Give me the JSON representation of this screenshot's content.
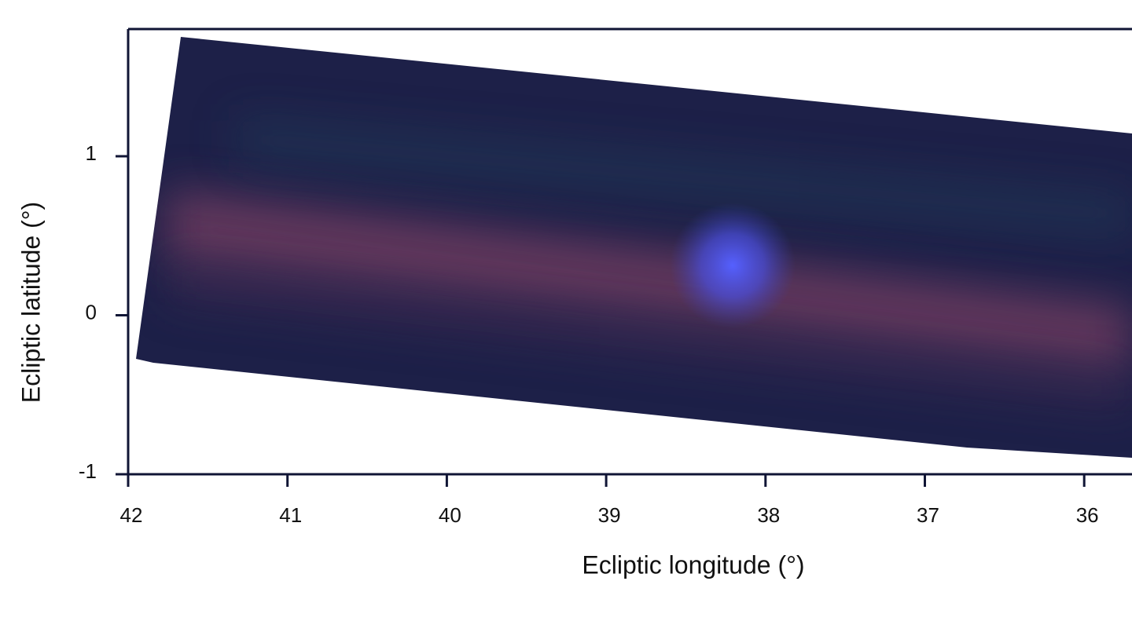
{
  "chart_data": {
    "type": "image",
    "xlabel": "Ecliptic longitude (°)",
    "ylabel": "Ecliptic latitude (°)",
    "xlim": [
      42,
      35.7
    ],
    "ylim": [
      -1,
      1.8
    ],
    "xticks": [
      42,
      41,
      40,
      39,
      38,
      37,
      36
    ],
    "yticks": [
      -1,
      0,
      1
    ]
  }
}
